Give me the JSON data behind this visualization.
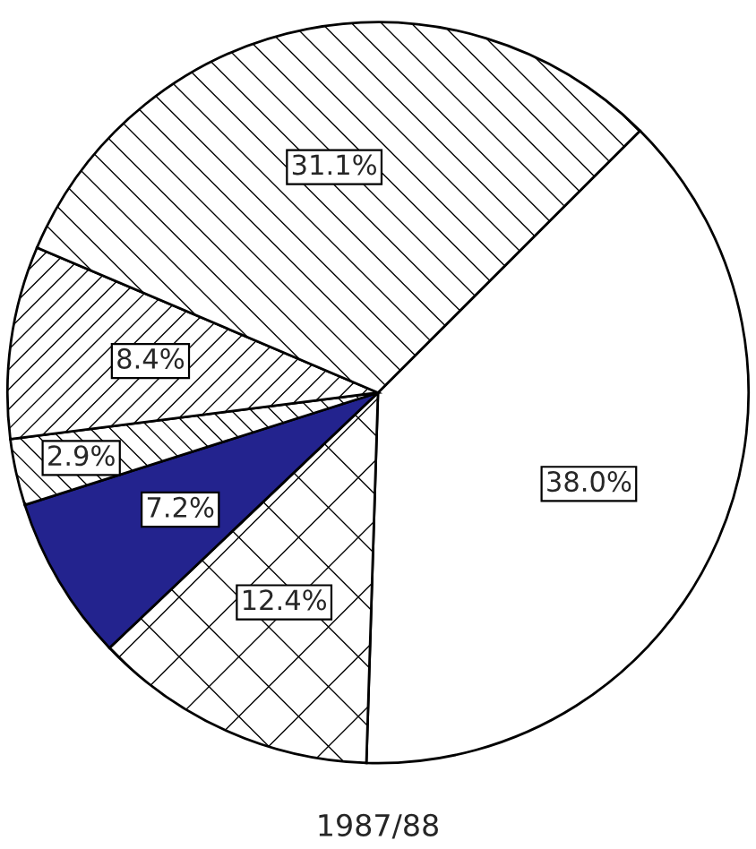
{
  "chart_data": {
    "type": "pie",
    "title": "1987/88",
    "categories": [
      null,
      null,
      null,
      null,
      null,
      null
    ],
    "values": [
      38.0,
      12.4,
      7.2,
      2.9,
      8.4,
      31.1
    ],
    "value_labels": [
      "38.0%",
      "12.4%",
      "7.2%",
      "2.9%",
      "8.4%",
      "31.1%"
    ],
    "colors": [
      "#ffffff",
      "#ffffff",
      "#23238e",
      "#ffffff",
      "#ffffff",
      "#ffffff"
    ]
  }
}
